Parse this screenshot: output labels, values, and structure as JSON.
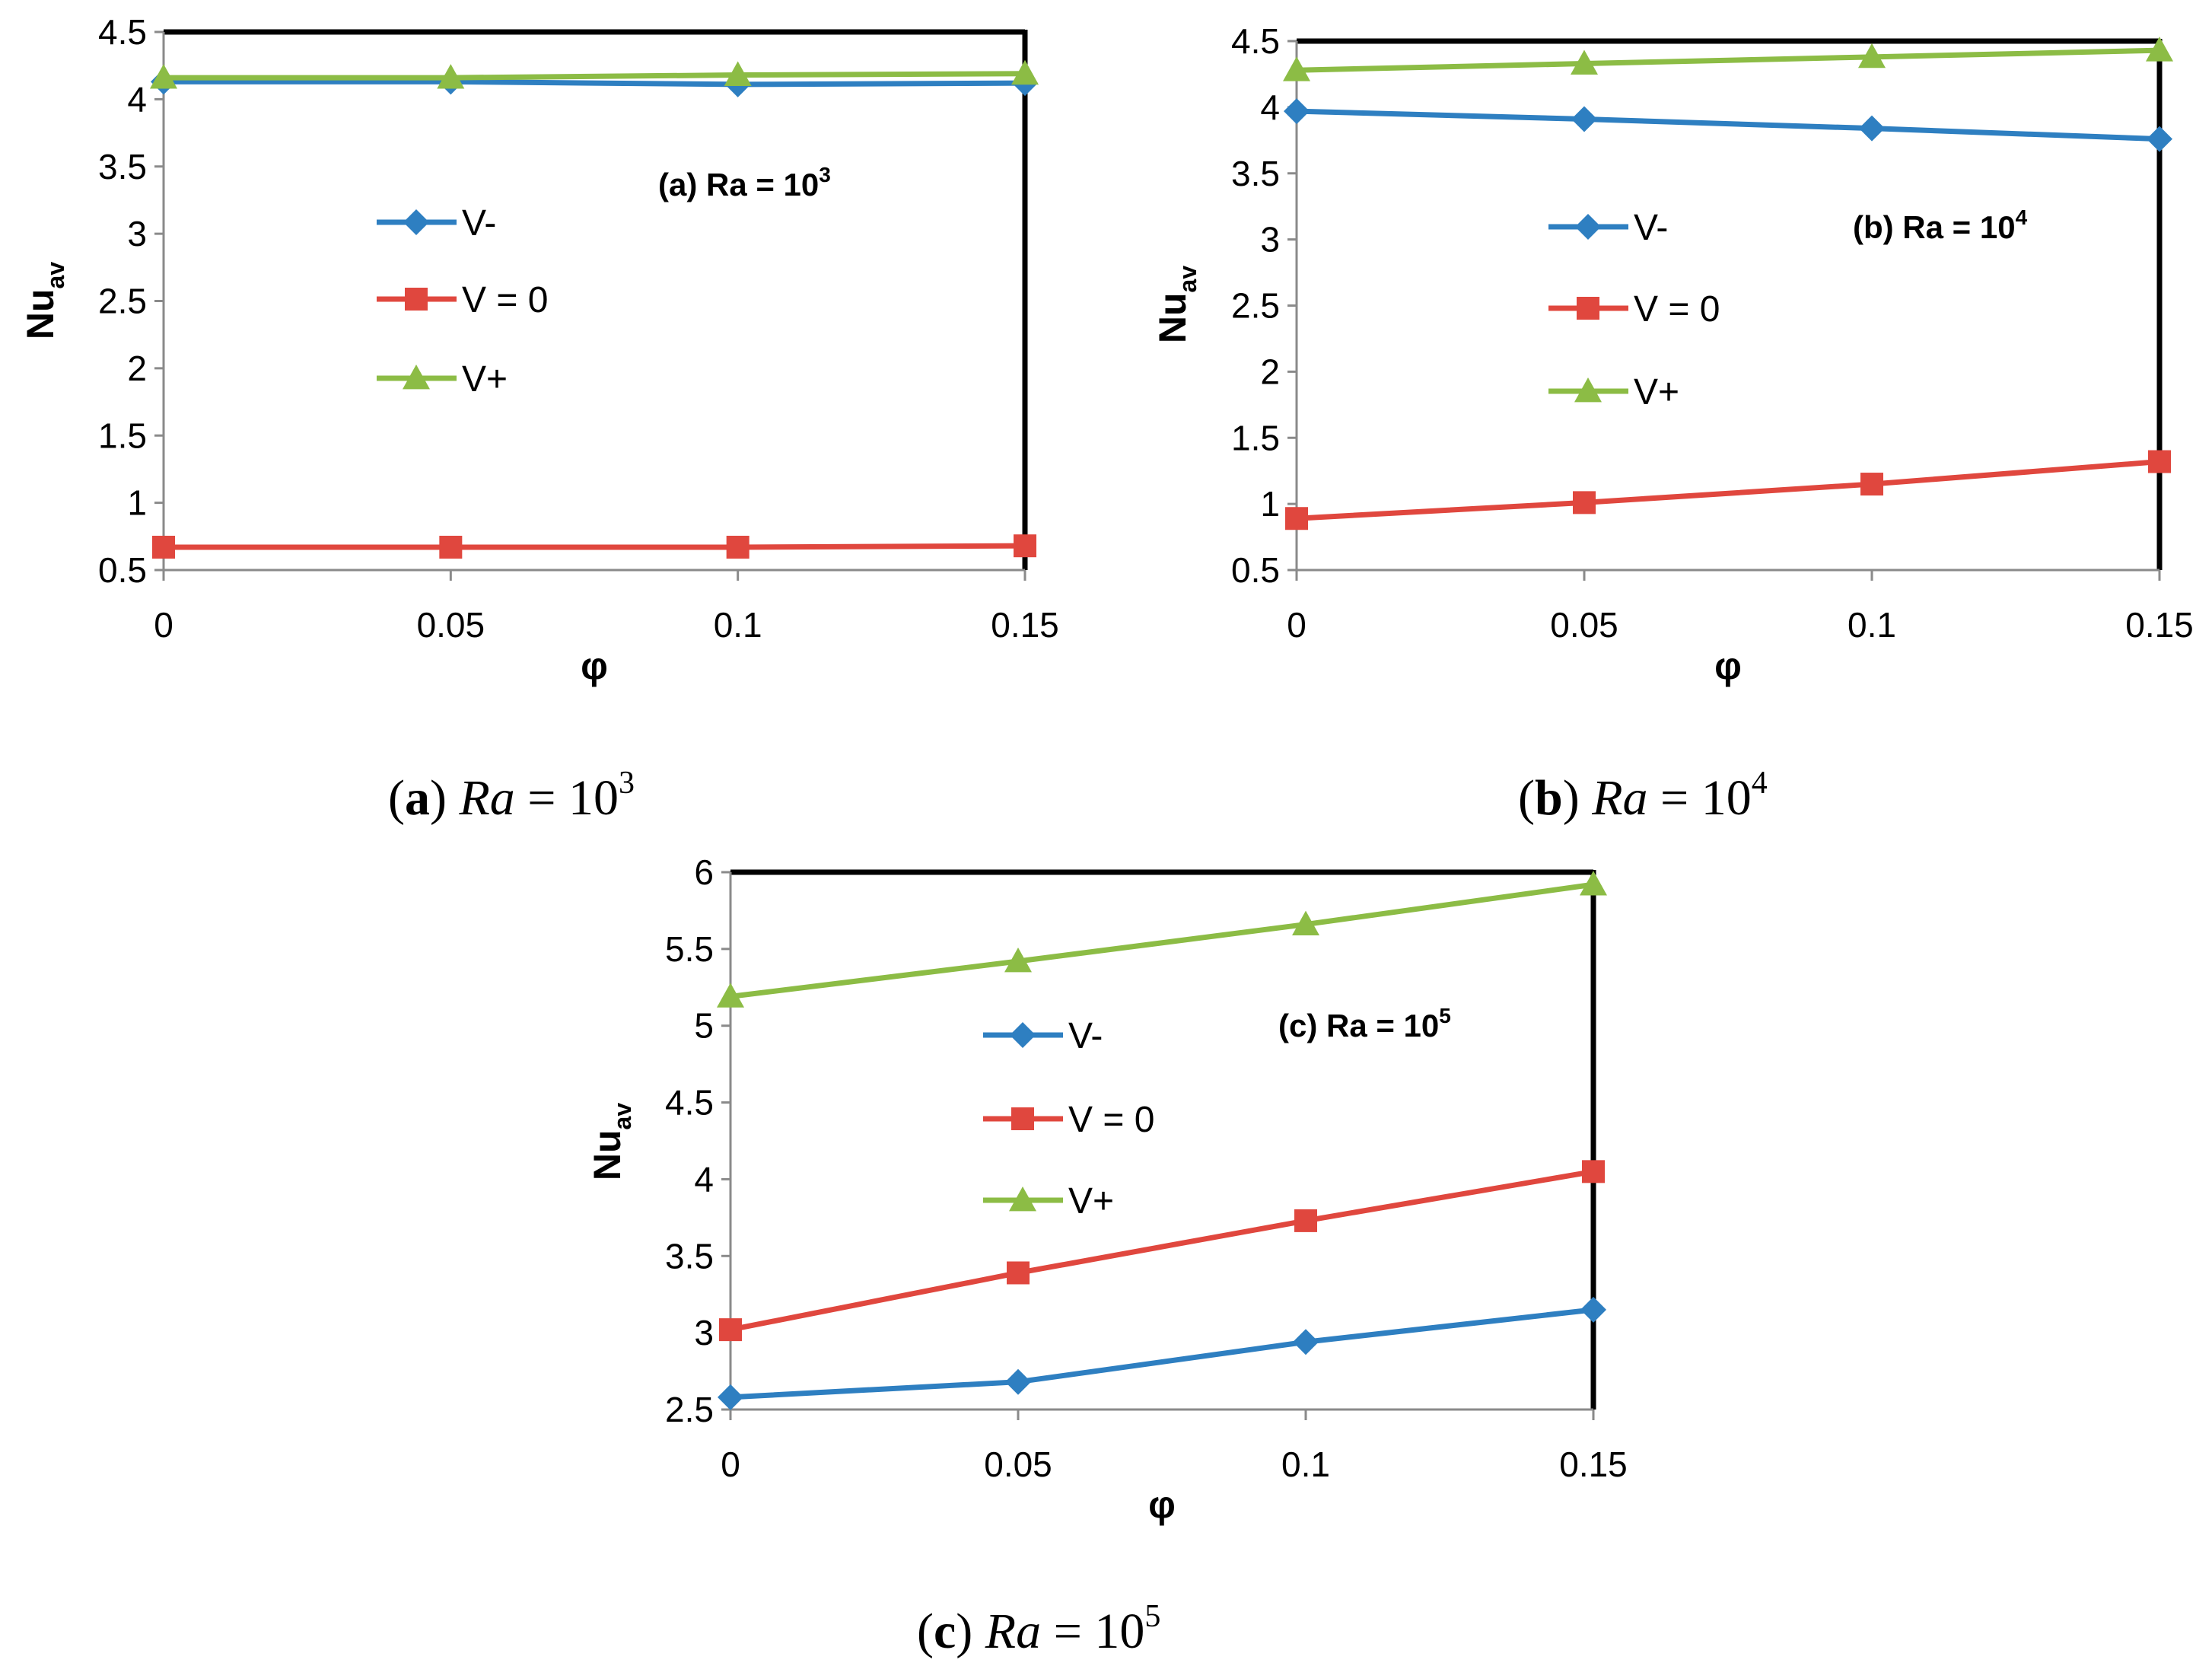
{
  "colors": {
    "v_minus": "#2e7fc1",
    "v_zero": "#e0473e",
    "v_plus": "#8cbc45",
    "frame": "#000000",
    "axis": "#8a8a8a"
  },
  "icons": {
    "v_minus": "diamond-marker",
    "v_zero": "square-marker",
    "v_plus": "triangle-marker"
  },
  "chart_data": [
    {
      "type": "line",
      "id": "a",
      "categories": [
        "0",
        "0.05",
        "0.1",
        "0.15"
      ],
      "x": [
        0,
        0.05,
        0.1,
        0.15
      ],
      "xlabel": "φ",
      "ylabel_main": "Nu",
      "ylabel_sub": "av",
      "ylim": [
        0.5,
        4.5
      ],
      "yticks": [
        "0.5",
        "1",
        "1.5",
        "2",
        "2.5",
        "3",
        "3.5",
        "4",
        "4.5"
      ],
      "annotation": {
        "prefix": "(a) Ra = 10",
        "sup": "3"
      },
      "caption": {
        "letter": "a",
        "var": "Ra",
        "eq": " = 10",
        "sup": "3"
      },
      "series": [
        {
          "key": "v_minus",
          "name": "V-",
          "values": [
            4.13,
            4.13,
            4.11,
            4.12
          ]
        },
        {
          "key": "v_zero",
          "name": "V = 0",
          "values": [
            0.67,
            0.67,
            0.67,
            0.68
          ]
        },
        {
          "key": "v_plus",
          "name": "V+",
          "values": [
            4.16,
            4.16,
            4.18,
            4.19
          ]
        }
      ]
    },
    {
      "type": "line",
      "id": "b",
      "categories": [
        "0",
        "0.05",
        "0.1",
        "0.15"
      ],
      "x": [
        0,
        0.05,
        0.1,
        0.15
      ],
      "xlabel": "φ",
      "ylabel_main": "Nu",
      "ylabel_sub": "av",
      "ylim": [
        0.5,
        4.5
      ],
      "yticks": [
        "0.5",
        "1",
        "1.5",
        "2",
        "2.5",
        "3",
        "3.5",
        "4",
        "4.5"
      ],
      "annotation": {
        "prefix": "(b) Ra = 10",
        "sup": "4"
      },
      "caption": {
        "letter": "b",
        "var": "Ra",
        "eq": " = 10",
        "sup": "4"
      },
      "series": [
        {
          "key": "v_minus",
          "name": "V-",
          "values": [
            3.97,
            3.91,
            3.84,
            3.76
          ]
        },
        {
          "key": "v_zero",
          "name": "V = 0",
          "values": [
            0.89,
            1.01,
            1.15,
            1.32
          ]
        },
        {
          "key": "v_plus",
          "name": "V+",
          "values": [
            4.28,
            4.33,
            4.38,
            4.43
          ]
        }
      ]
    },
    {
      "type": "line",
      "id": "c",
      "categories": [
        "0",
        "0.05",
        "0.1",
        "0.15"
      ],
      "x": [
        0,
        0.05,
        0.1,
        0.15
      ],
      "xlabel": "φ",
      "ylabel_main": "Nu",
      "ylabel_sub": "av",
      "ylim": [
        2.5,
        6
      ],
      "yticks": [
        "2.5",
        "3",
        "3.5",
        "4",
        "4.5",
        "5",
        "5.5",
        "6"
      ],
      "annotation": {
        "prefix": "(c) Ra = 10",
        "sup": "5"
      },
      "caption": {
        "letter": "c",
        "var": "Ra",
        "eq": " = 10",
        "sup": "5"
      },
      "series": [
        {
          "key": "v_minus",
          "name": "V-",
          "values": [
            2.58,
            2.68,
            2.94,
            3.15
          ]
        },
        {
          "key": "v_zero",
          "name": "V = 0",
          "values": [
            3.02,
            3.39,
            3.73,
            4.05
          ]
        },
        {
          "key": "v_plus",
          "name": "V+",
          "values": [
            5.19,
            5.42,
            5.66,
            5.92
          ]
        }
      ]
    }
  ]
}
